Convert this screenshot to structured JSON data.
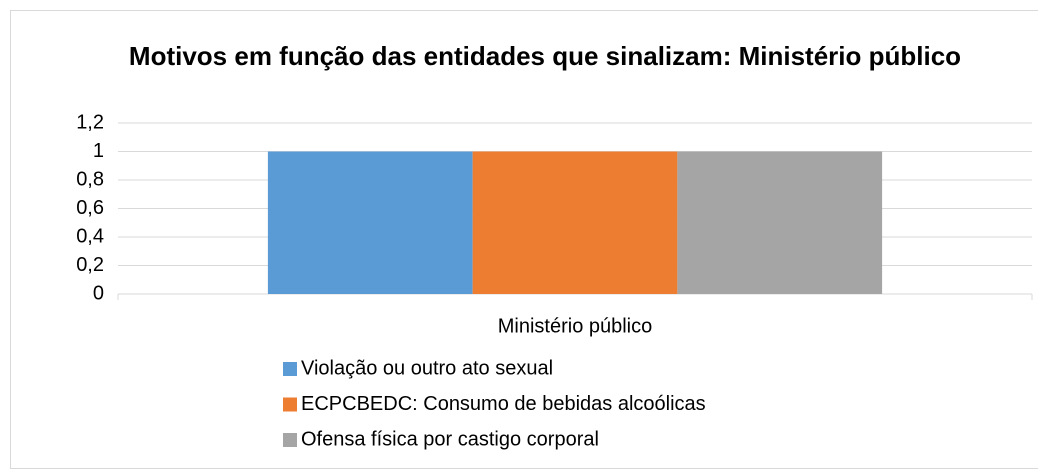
{
  "chart_data": {
    "type": "bar",
    "title": "Motivos em função das entidades que sinalizam: Ministério público",
    "categories": [
      "Ministério público"
    ],
    "series": [
      {
        "name": "Violação ou outro ato sexual",
        "color": "#5b9bd5",
        "values": [
          1
        ]
      },
      {
        "name": "ECPCBEDC: Consumo de bebidas alcoólicas",
        "color": "#ed7d31",
        "values": [
          1
        ]
      },
      {
        "name": "Ofensa física por castigo corporal",
        "color": "#a5a5a5",
        "values": [
          1
        ]
      }
    ],
    "ylim": [
      0,
      1.2
    ],
    "yticks": [
      0,
      {
        "value": 0.2,
        "label": "0,2"
      },
      {
        "value": 0.4,
        "label": "0,4"
      },
      {
        "value": 0.6,
        "label": "0,6"
      },
      {
        "value": 0.8,
        "label": "0,8"
      },
      1,
      {
        "value": 1.2,
        "label": "1,2"
      }
    ],
    "grid": true,
    "legend": "bottom"
  }
}
